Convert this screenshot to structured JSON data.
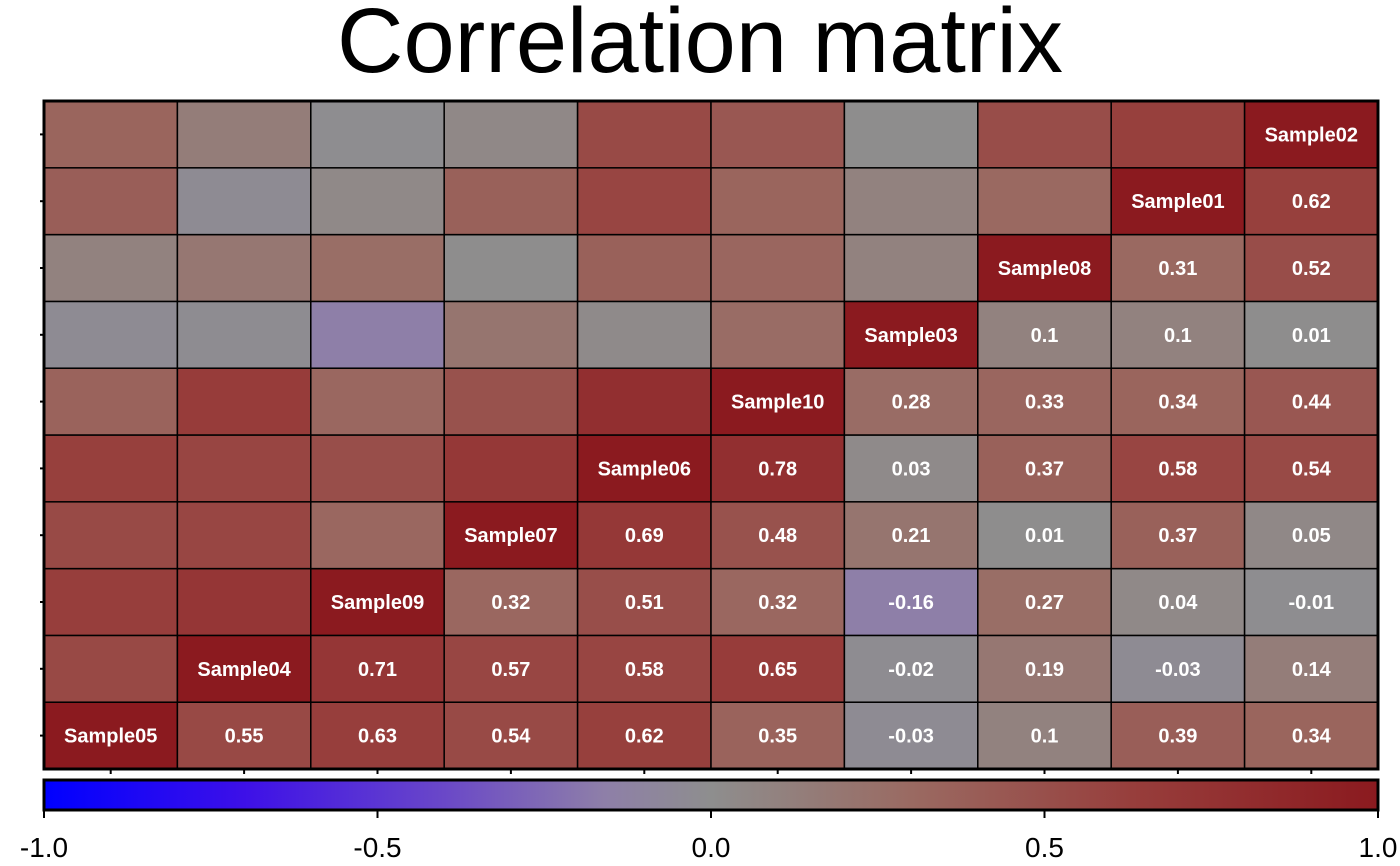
{
  "chart_data": {
    "type": "heatmap",
    "title": "Correlation matrix",
    "samples": [
      "Sample05",
      "Sample04",
      "Sample09",
      "Sample07",
      "Sample06",
      "Sample10",
      "Sample03",
      "Sample08",
      "Sample01",
      "Sample02"
    ],
    "matrix": [
      [
        1.0,
        0.55,
        0.63,
        0.54,
        0.62,
        0.35,
        -0.03,
        0.1,
        0.39,
        0.34
      ],
      [
        0.55,
        1.0,
        0.71,
        0.57,
        0.58,
        0.65,
        -0.02,
        0.19,
        -0.03,
        0.14
      ],
      [
        0.63,
        0.71,
        1.0,
        0.32,
        0.51,
        0.32,
        -0.16,
        0.27,
        0.04,
        -0.01
      ],
      [
        0.54,
        0.57,
        0.32,
        1.0,
        0.69,
        0.48,
        0.21,
        0.01,
        0.37,
        0.05
      ],
      [
        0.62,
        0.58,
        0.51,
        0.69,
        1.0,
        0.78,
        0.03,
        0.37,
        0.58,
        0.54
      ],
      [
        0.35,
        0.65,
        0.32,
        0.48,
        0.78,
        1.0,
        0.28,
        0.33,
        0.34,
        0.44
      ],
      [
        -0.03,
        -0.02,
        -0.16,
        0.21,
        0.03,
        0.28,
        1.0,
        0.1,
        0.1,
        0.01
      ],
      [
        0.1,
        0.19,
        0.27,
        0.01,
        0.37,
        0.33,
        0.1,
        1.0,
        0.31,
        0.52
      ],
      [
        0.39,
        -0.03,
        0.04,
        0.37,
        0.58,
        0.34,
        0.1,
        0.31,
        1.0,
        0.62
      ],
      [
        0.34,
        0.14,
        -0.01,
        0.05,
        0.54,
        0.44,
        0.01,
        0.52,
        0.62,
        1.0
      ]
    ],
    "labels_shown": "upper triangle with sample names on the diagonal",
    "colorbar": {
      "range": [
        -1.0,
        1.0
      ],
      "ticks": [
        "-1.0",
        "-0.5",
        "0.0",
        "0.5",
        "1.0"
      ],
      "colors": {
        "low": "#0000ff",
        "mid": "#8c8c8c",
        "high": "#8b1a1f"
      }
    }
  }
}
